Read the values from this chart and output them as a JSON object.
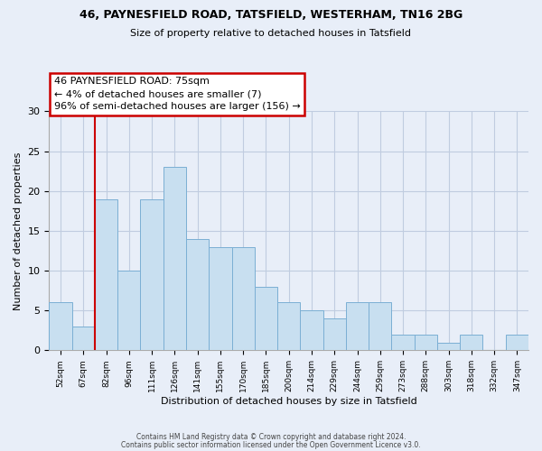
{
  "title1": "46, PAYNESFIELD ROAD, TATSFIELD, WESTERHAM, TN16 2BG",
  "title2": "Size of property relative to detached houses in Tatsfield",
  "xlabel": "Distribution of detached houses by size in Tatsfield",
  "ylabel": "Number of detached properties",
  "categories": [
    "52sqm",
    "67sqm",
    "82sqm",
    "96sqm",
    "111sqm",
    "126sqm",
    "141sqm",
    "155sqm",
    "170sqm",
    "185sqm",
    "200sqm",
    "214sqm",
    "229sqm",
    "244sqm",
    "259sqm",
    "273sqm",
    "288sqm",
    "303sqm",
    "318sqm",
    "332sqm",
    "347sqm"
  ],
  "values": [
    6,
    3,
    19,
    10,
    19,
    23,
    14,
    13,
    13,
    8,
    6,
    5,
    4,
    6,
    6,
    2,
    2,
    1,
    2,
    0,
    2
  ],
  "bar_color": "#c8dff0",
  "bar_edgecolor": "#7bafd4",
  "ylim": [
    0,
    30
  ],
  "yticks": [
    0,
    5,
    10,
    15,
    20,
    25,
    30
  ],
  "annotation_title": "46 PAYNESFIELD ROAD: 75sqm",
  "annotation_line1": "← 4% of detached houses are smaller (7)",
  "annotation_line2": "96% of semi-detached houses are larger (156) →",
  "annotation_box_color": "#ffffff",
  "annotation_box_edgecolor": "#cc0000",
  "vline_color": "#cc0000",
  "footer1": "Contains HM Land Registry data © Crown copyright and database right 2024.",
  "footer2": "Contains public sector information licensed under the Open Government Licence v3.0.",
  "background_color": "#e8eef8",
  "grid_color": "#c0cce0"
}
